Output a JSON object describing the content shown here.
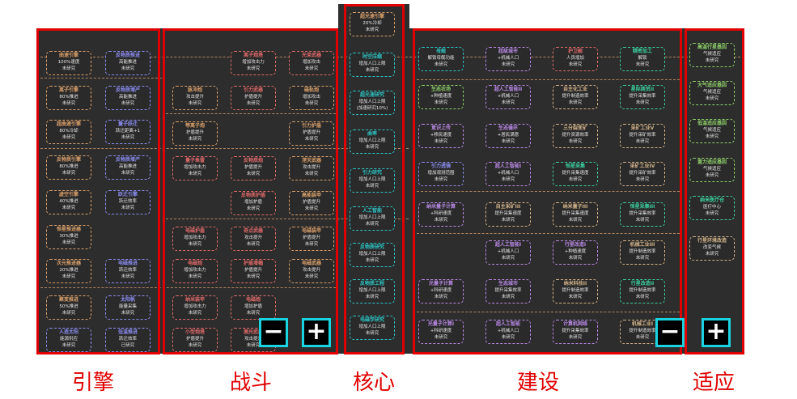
{
  "sections": [
    {
      "key": "engine",
      "label": "引擎",
      "nodes": [
        {
          "t": "曲速引擎",
          "d": "100%速度",
          "s": "未研究",
          "c": "#d9a06b"
        },
        {
          "t": "反物质推进",
          "d": "高能推进",
          "s": "未研究",
          "c": "#8c8cf0"
        },
        {
          "t": "离子引擎",
          "d": "80%推进",
          "s": "未研究",
          "c": "#d9a06b"
        },
        {
          "t": "反物质增产",
          "d": "高能推进",
          "s": "未研究",
          "c": "#8c8cf0"
        },
        {
          "t": "超曲速引擎",
          "d": "80%冷却",
          "s": "未研究",
          "c": "#d9a06b"
        },
        {
          "t": "量子跃迁",
          "d": "跃迁距离+1",
          "s": "未研究",
          "c": "#8c8cf0"
        },
        {
          "t": "反物质引擎",
          "d": "80%推进",
          "s": "未研究",
          "c": "#d9a06b"
        },
        {
          "t": "反物质增产",
          "d": "高能推进",
          "s": "未研究",
          "c": "#8c8cf0"
        },
        {
          "t": "虚空引擎",
          "d": "40%推进",
          "s": "未研究",
          "c": "#d9a06b"
        },
        {
          "t": "跃迁引擎",
          "d": "跃迁效率",
          "s": "未研究",
          "c": "#8c8cf0"
        },
        {
          "t": "恒星推进器",
          "d": "30%推进",
          "s": "未研究",
          "c": "#d9a06b"
        },
        {
          "t": "次元推进器",
          "d": "20%推进",
          "s": "未研究",
          "c": "#d9a06b"
        },
        {
          "t": "电磁推进",
          "d": "跃迁效率",
          "s": "未研究",
          "c": "#8c8cf0"
        },
        {
          "t": "聚变推进",
          "d": "50%推进",
          "s": "未研究",
          "c": "#d9a06b"
        },
        {
          "t": "太阳帆",
          "d": "能量采集",
          "s": "未研究",
          "c": "#8c8cf0"
        },
        {
          "t": "人造太阳",
          "d": "能源供应",
          "s": "未研究",
          "c": "#8c8cf0"
        },
        {
          "t": "低温推进",
          "d": "跃迁效率",
          "s": "已研究",
          "c": "#8c8cf0"
        }
      ]
    },
    {
      "key": "combat",
      "label": "战斗",
      "nodes": [
        {
          "t": "脉冲炮",
          "d": "攻击提升",
          "s": "未研究",
          "c": "#d9a06b"
        },
        {
          "t": "等离子炮",
          "d": "护盾提升",
          "s": "未研究",
          "c": "#d9a06b"
        },
        {
          "t": "离子炮塔",
          "d": "增加攻击力",
          "s": "未研究",
          "c": "#e06a6a"
        },
        {
          "t": "光束武器",
          "d": "增加攻击",
          "s": "未研究",
          "c": "#e06a6a"
        },
        {
          "t": "磁轨炮",
          "d": "增加攻击",
          "s": "未研究",
          "c": "#d9a06b"
        },
        {
          "t": "引力武器",
          "d": "护盾提升",
          "s": "未研究",
          "c": "#e06a6a"
        },
        {
          "t": "引力护盾",
          "d": "护盾提升",
          "s": "未研究",
          "c": "#d9a06b"
        },
        {
          "t": "量子鱼雷",
          "d": "增加攻击力",
          "s": "未研究",
          "c": "#e06a6a"
        },
        {
          "t": "反物质炮",
          "d": "护盾提升",
          "s": "未研究",
          "c": "#e06a6a"
        },
        {
          "t": "湮灭武器",
          "d": "攻击提升",
          "s": "未研究",
          "c": "#d9a06b"
        },
        {
          "t": "反物质护盾",
          "d": "增加护盾",
          "s": "未研究",
          "c": "#e06a6a"
        },
        {
          "t": "高能装甲",
          "d": "护盾提升",
          "s": "未研究",
          "c": "#d9a06b"
        },
        {
          "t": "电磁护盾",
          "d": "增加攻击力",
          "s": "未研究",
          "c": "#e06a6a"
        },
        {
          "t": "奇点武器",
          "d": "攻击提升",
          "s": "未研究",
          "c": "#e06a6a"
        },
        {
          "t": "电磁装甲",
          "d": "护盾提升",
          "s": "未研究",
          "c": "#d9a06b"
        },
        {
          "t": "电磁炮",
          "d": "增加攻击力",
          "s": "未研究",
          "c": "#e06a6a"
        },
        {
          "t": "护盾增幅",
          "d": "护盾提升",
          "s": "未研究",
          "c": "#e06a6a"
        },
        {
          "t": "电磁武器",
          "d": "攻击提升",
          "s": "未研究",
          "c": "#d9a06b"
        },
        {
          "t": "纳米装甲",
          "d": "增加攻击力",
          "s": "未研究",
          "c": "#e06a6a"
        },
        {
          "t": "电磁炮",
          "d": "增加护盾",
          "s": "未研究",
          "c": "#e06a6a"
        },
        {
          "t": "小型炮塔",
          "d": "护盾提升",
          "s": "未研究",
          "c": "#e06a6a"
        },
        {
          "t": "激光武器",
          "d": "攻击提升",
          "s": "未研究",
          "c": "#e06a6a"
        }
      ]
    },
    {
      "key": "core",
      "label": "核心",
      "nodes": [
        {
          "t": "超光速引擎",
          "d": "20%冷却",
          "s": "未研究",
          "c": "#d9a06b"
        },
        {
          "t": "时空压缩",
          "d": "增加人口上限",
          "s": "未研究",
          "c": "#2ec4c4"
        },
        {
          "t": "超光速研究",
          "d": "增加人口上限",
          "s": "(加速研究10%)",
          "c": "#2ec4c4"
        },
        {
          "t": "曲率",
          "d": "增加人口上限",
          "s": "未研究",
          "c": "#2ec4c4"
        },
        {
          "t": "引力研究",
          "d": "增加人口上限",
          "s": "未研究",
          "c": "#2ec4c4"
        },
        {
          "t": "人工智能",
          "d": "增加人口上限",
          "s": "未研究",
          "c": "#2ec4c4"
        },
        {
          "t": "反物质研究",
          "d": "增加人口上限",
          "s": "未研究",
          "c": "#2ec4c4"
        },
        {
          "t": "反物质工程",
          "d": "增加人口上限",
          "s": "未研究",
          "c": "#2ec4c4"
        },
        {
          "t": "电磁学研究",
          "d": "增加人口上限",
          "s": "未研究",
          "c": "#2ec4c4"
        }
      ]
    },
    {
      "key": "build",
      "label": "建设",
      "nodes": [
        {
          "t": "母舰",
          "d": "解锁母舰功能",
          "s": "未研究",
          "c": "#2ec4c4"
        },
        {
          "t": "超级城市",
          "d": "+机械人口",
          "s": "未研究",
          "c": "#b98ae6"
        },
        {
          "t": "护卫舰",
          "d": "人员增加",
          "s": "未研究",
          "c": "#e06a6a"
        },
        {
          "t": "精密加工",
          "d": "解锁",
          "s": "未研究",
          "c": "#3ccfa0"
        },
        {
          "t": "生态农场",
          "d": "+种植速度",
          "s": "未研究",
          "c": "#8fd16a"
        },
        {
          "t": "超人工智能II",
          "d": "+机械人口",
          "s": "未研究",
          "c": "#b98ae6"
        },
        {
          "t": "自主化工业",
          "d": "提升制造效率",
          "s": "未研究",
          "c": "#d4b48a"
        },
        {
          "t": "星际商贸II",
          "d": "提升采集效率",
          "s": "未研究",
          "c": "#3ccfa0"
        },
        {
          "t": "意识上传",
          "d": "+移民速度",
          "s": "未研究",
          "c": "#b98ae6"
        },
        {
          "t": "生态循环",
          "d": "+居民满意",
          "s": "未研究",
          "c": "#b98ae6"
        },
        {
          "t": "三分裂变矿",
          "d": "提升资源效率",
          "s": "未研究",
          "c": "#d4b48a"
        },
        {
          "t": "采矿工业V",
          "d": "提升采矿效率",
          "s": "未研究",
          "c": "#d4b48a"
        },
        {
          "t": "引力透镜",
          "d": "增加观测范围",
          "s": "未研究",
          "c": "#8c8cf0"
        },
        {
          "t": "超人工智能I",
          "d": "+机械人口",
          "s": "未研究",
          "c": "#b98ae6"
        },
        {
          "t": "恒星采集",
          "d": "提升采集速度",
          "s": "未研究",
          "c": "#3ccfa0"
        },
        {
          "t": "采矿工业IV",
          "d": "提升采矿效率",
          "s": "未研究",
          "c": "#d4b48a"
        },
        {
          "t": "纳米量子计算",
          "d": "+科研速度",
          "s": "未研究",
          "c": "#b98ae6"
        },
        {
          "t": "自主采矿III",
          "d": "提升采集速度",
          "s": "未研究",
          "c": "#d4b48a"
        },
        {
          "t": "纳米量子III",
          "d": "提升采集速度",
          "s": "未研究",
          "c": "#d4b48a"
        },
        {
          "t": "恒星采集III",
          "d": "提升采集效率",
          "s": "未研究",
          "c": "#3ccfa0"
        },
        {
          "t": "超人工智能I",
          "d": "+机械人口",
          "s": "未研究",
          "c": "#b98ae6"
        },
        {
          "t": "行星改造I",
          "d": "+种植速度",
          "s": "未研究",
          "c": "#b98ae6"
        },
        {
          "t": "机械工业III",
          "d": "提升制造效率",
          "s": "未研究",
          "c": "#d4b48a"
        },
        {
          "t": "光量子计算",
          "d": "+科研速度",
          "s": "未研究",
          "c": "#b98ae6"
        },
        {
          "t": "生态城市",
          "d": "提升采集效率",
          "s": "未研究",
          "c": "#b98ae6"
        },
        {
          "t": "纳米科技II",
          "d": "提升制造效率",
          "s": "未研究",
          "c": "#d4b48a"
        },
        {
          "t": "行星改造II",
          "d": "提升制造效率",
          "s": "未研究",
          "c": "#3ccfa0"
        },
        {
          "t": "光量子计算I",
          "d": "+科研速度",
          "s": "未研究",
          "c": "#b98ae6"
        },
        {
          "t": "超人工智能",
          "d": "+机械人口",
          "s": "未研究",
          "c": "#b98ae6"
        },
        {
          "t": "计算机网络",
          "d": "提升采集效率",
          "s": "未研究",
          "c": "#b98ae6"
        },
        {
          "t": "机械工业I",
          "d": "提升制造效率",
          "s": "未研究",
          "c": "#d4b48a"
        }
      ]
    },
    {
      "key": "adapt",
      "label": "适应",
      "nodes": [
        {
          "t": "高温行星基因",
          "d": "气候适应",
          "s": "未研究",
          "c": "#8fd16a"
        },
        {
          "t": "大气适应基因",
          "d": "气候适应",
          "s": "未研究",
          "c": "#8fd16a"
        },
        {
          "t": "低温适应基因",
          "d": "气候适应",
          "s": "未研究",
          "c": "#8fd16a"
        },
        {
          "t": "重力适应基因",
          "d": "气候适应",
          "s": "未研究",
          "c": "#8fd16a"
        },
        {
          "t": "纳米医疗仓",
          "d": "医疗中心",
          "s": "未研究",
          "c": "#3ccfa0"
        },
        {
          "t": "行星环境改造",
          "d": "改变气候",
          "s": "未研究",
          "c": "#d4b48a"
        }
      ]
    }
  ],
  "zoom_controls": {
    "minus": "−",
    "plus": "+"
  },
  "accent_color": "#e00000",
  "button_border_color": "#19d3e0"
}
